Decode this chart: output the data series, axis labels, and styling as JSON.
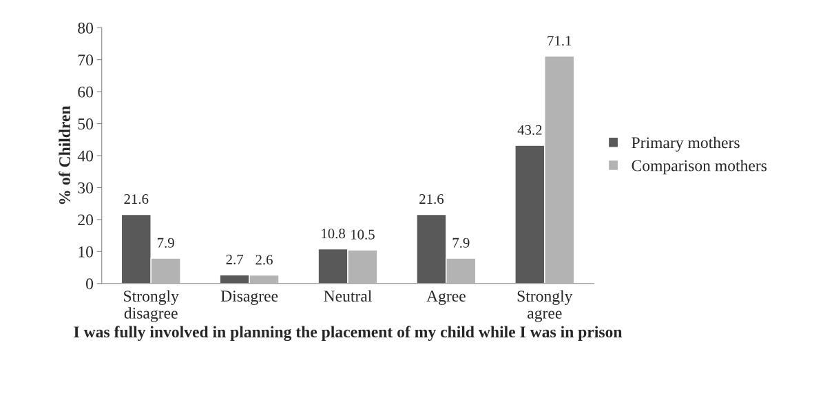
{
  "chart_data": {
    "type": "bar",
    "categories": [
      "Strongly\ndisagree",
      "Disagree",
      "Neutral",
      "Agree",
      "Strongly\nagree"
    ],
    "series": [
      {
        "name": "Primary mothers",
        "color": "#595959",
        "values": [
          21.6,
          2.7,
          10.8,
          21.6,
          43.2
        ]
      },
      {
        "name": "Comparison mothers",
        "color": "#b3b3b3",
        "values": [
          7.9,
          2.6,
          10.5,
          7.9,
          71.1
        ]
      }
    ],
    "xlabel": "I was fully involved in planning the placement of my child while I was in prison",
    "ylabel": "% of Children",
    "ylim": [
      0,
      80
    ],
    "yticks": [
      0,
      10,
      20,
      30,
      40,
      50,
      60,
      70,
      80
    ],
    "data_labels": true,
    "grid": false,
    "legend": "right"
  }
}
